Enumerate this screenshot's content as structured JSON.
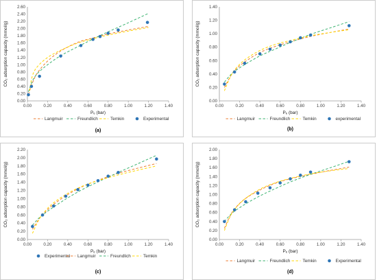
{
  "figure": {
    "captions": [
      "(a)",
      "(b)",
      "(c)",
      "(d)"
    ]
  },
  "colors": {
    "Langmuir": "#ED7D31",
    "Freundlich": "#3CB371",
    "Temkin": "#FFD700",
    "Experimental": "#2E75B6",
    "frame": "#BFBFBF",
    "axis": "#9A9A9A"
  },
  "chart_data": [
    {
      "type": "scatter",
      "caption": "(a)",
      "xlabel": "Pₑ (bar)",
      "ylabel": "CO₂ adsorption capacity (mmol/g)",
      "xlim": [
        0,
        1.4
      ],
      "ylim": [
        0,
        2.6
      ],
      "xticks": [
        "0.00",
        "0.20",
        "0.40",
        "0.60",
        "0.80",
        "1.00",
        "1.20",
        "1.40"
      ],
      "yticks": [
        "0.00",
        "0.20",
        "0.40",
        "0.60",
        "0.80",
        "1.00",
        "1.20",
        "1.40",
        "1.60",
        "1.80",
        "2.00",
        "2.20",
        "2.40",
        "2.60"
      ],
      "legend": [
        "Langmuir",
        "Freundlich",
        "Temkin",
        "Experimental"
      ],
      "legend_position": "bottom",
      "series": [
        {
          "name": "Langmuir",
          "style": "dashed",
          "x": [
            0.01,
            0.05,
            0.1,
            0.2,
            0.33,
            0.5,
            0.65,
            0.8,
            1.0,
            1.2
          ],
          "y": [
            0.18,
            0.5,
            0.78,
            1.1,
            1.38,
            1.62,
            1.74,
            1.85,
            1.96,
            2.06
          ]
        },
        {
          "name": "Freundlich",
          "style": "dashed",
          "x": [
            0.01,
            0.05,
            0.1,
            0.2,
            0.33,
            0.5,
            0.65,
            0.8,
            1.0,
            1.2
          ],
          "y": [
            0.25,
            0.55,
            0.76,
            1.0,
            1.25,
            1.5,
            1.71,
            1.91,
            2.16,
            2.42
          ]
        },
        {
          "name": "Temkin",
          "style": "dashed",
          "x": [
            0.02,
            0.05,
            0.1,
            0.2,
            0.33,
            0.5,
            0.65,
            0.8,
            1.0,
            1.2
          ],
          "y": [
            0.28,
            0.7,
            0.95,
            1.2,
            1.4,
            1.6,
            1.72,
            1.82,
            1.93,
            2.03
          ]
        },
        {
          "name": "Experimental",
          "style": "markers",
          "x": [
            0.01,
            0.04,
            0.12,
            0.33,
            0.53,
            0.65,
            0.72,
            0.8,
            0.9,
            1.19
          ],
          "y": [
            0.17,
            0.4,
            0.68,
            1.24,
            1.53,
            1.7,
            1.78,
            1.87,
            1.96,
            2.17
          ]
        }
      ]
    },
    {
      "type": "scatter",
      "caption": "(b)",
      "xlabel": "Pₑ (bar)",
      "ylabel": "CO₂ adsorption capacity (mmol/g)",
      "xlim": [
        0,
        1.4
      ],
      "ylim": [
        0,
        1.4
      ],
      "xticks": [
        "0.00",
        "0.20",
        "0.40",
        "0.60",
        "0.80",
        "1.00",
        "1.20",
        "1.40"
      ],
      "yticks": [
        "0.00",
        "0.20",
        "0.40",
        "0.60",
        "0.80",
        "1.00",
        "1.20",
        "1.40"
      ],
      "legend": [
        "Langmuir",
        "Freundlich",
        "Temkin",
        "experimental"
      ],
      "legend_position": "bottom",
      "series": [
        {
          "name": "Langmuir",
          "style": "dashed",
          "x": [
            0.05,
            0.1,
            0.15,
            0.25,
            0.4,
            0.55,
            0.7,
            0.9,
            1.1,
            1.28
          ],
          "y": [
            0.2,
            0.34,
            0.45,
            0.58,
            0.72,
            0.81,
            0.88,
            0.96,
            1.02,
            1.07
          ]
        },
        {
          "name": "Freundlich",
          "style": "dashed",
          "x": [
            0.05,
            0.1,
            0.15,
            0.25,
            0.4,
            0.55,
            0.7,
            0.9,
            1.1,
            1.28
          ],
          "y": [
            0.28,
            0.37,
            0.44,
            0.54,
            0.67,
            0.77,
            0.87,
            0.99,
            1.09,
            1.18
          ]
        },
        {
          "name": "Temkin",
          "style": "dashed",
          "x": [
            0.05,
            0.1,
            0.15,
            0.25,
            0.4,
            0.55,
            0.7,
            0.9,
            1.1,
            1.28
          ],
          "y": [
            0.15,
            0.33,
            0.46,
            0.61,
            0.75,
            0.84,
            0.9,
            0.97,
            1.02,
            1.06
          ]
        },
        {
          "name": "experimental",
          "style": "markers",
          "x": [
            0.05,
            0.15,
            0.25,
            0.4,
            0.5,
            0.6,
            0.7,
            0.8,
            0.9,
            1.28
          ],
          "y": [
            0.25,
            0.43,
            0.56,
            0.7,
            0.77,
            0.83,
            0.88,
            0.94,
            0.98,
            1.12
          ]
        }
      ]
    },
    {
      "type": "scatter",
      "caption": "(c)",
      "xlabel": "Pₑ (bar)",
      "ylabel": "CO₂ adsorption capacity (mmol/g)",
      "xlim": [
        0,
        1.4
      ],
      "ylim": [
        0,
        2.2
      ],
      "xticks": [
        "0.00",
        "0.20",
        "0.40",
        "0.60",
        "0.80",
        "1.00",
        "1.20",
        "1.40"
      ],
      "yticks": [
        "0.00",
        "0.20",
        "0.40",
        "0.60",
        "0.80",
        "1.00",
        "1.20",
        "1.40",
        "1.60",
        "1.80",
        "2.00",
        "2.20"
      ],
      "legend": [
        "Experimental",
        "Langmuir",
        "Freundlich",
        "Temkin"
      ],
      "legend_position": "bottom",
      "series": [
        {
          "name": "Langmuir",
          "style": "dashed",
          "x": [
            0.05,
            0.1,
            0.15,
            0.25,
            0.4,
            0.55,
            0.7,
            0.9,
            1.1,
            1.28
          ],
          "y": [
            0.25,
            0.45,
            0.6,
            0.84,
            1.1,
            1.3,
            1.45,
            1.62,
            1.75,
            1.86
          ]
        },
        {
          "name": "Freundlich",
          "style": "dashed",
          "x": [
            0.05,
            0.1,
            0.15,
            0.25,
            0.4,
            0.55,
            0.7,
            0.9,
            1.1,
            1.28
          ],
          "y": [
            0.35,
            0.49,
            0.6,
            0.78,
            1.02,
            1.23,
            1.41,
            1.64,
            1.86,
            2.06
          ]
        },
        {
          "name": "Temkin",
          "style": "dashed",
          "x": [
            0.05,
            0.1,
            0.15,
            0.25,
            0.4,
            0.55,
            0.7,
            0.9,
            1.1,
            1.28
          ],
          "y": [
            0.15,
            0.42,
            0.62,
            0.88,
            1.13,
            1.31,
            1.44,
            1.58,
            1.7,
            1.8
          ]
        },
        {
          "name": "Experimental",
          "style": "markers",
          "x": [
            0.05,
            0.15,
            0.26,
            0.38,
            0.5,
            0.6,
            0.7,
            0.8,
            0.9,
            1.28
          ],
          "y": [
            0.32,
            0.6,
            0.82,
            1.06,
            1.22,
            1.33,
            1.44,
            1.55,
            1.64,
            1.97
          ]
        }
      ]
    },
    {
      "type": "scatter",
      "caption": "(d)",
      "xlabel": "Pₑ (bar)",
      "ylabel": "CO₂ adsorption capacity (mmol/g)",
      "xlim": [
        0,
        1.4
      ],
      "ylim": [
        0,
        2.0
      ],
      "xticks": [
        "0.00",
        "0.20",
        "0.40",
        "0.60",
        "0.80",
        "1.00",
        "1.20",
        "1.40"
      ],
      "yticks": [
        "0.00",
        "0.20",
        "0.40",
        "0.60",
        "0.80",
        "1.00",
        "1.20",
        "1.40",
        "1.60",
        "1.80",
        "2.00"
      ],
      "legend": [
        "Langmuir",
        "Freundlich",
        "Temkin",
        "Experimental"
      ],
      "legend_position": "bottom",
      "series": [
        {
          "name": "Langmuir",
          "style": "dashed",
          "x": [
            0.05,
            0.1,
            0.15,
            0.25,
            0.4,
            0.55,
            0.7,
            0.9,
            1.1,
            1.28
          ],
          "y": [
            0.25,
            0.5,
            0.68,
            0.9,
            1.1,
            1.25,
            1.35,
            1.45,
            1.54,
            1.61
          ]
        },
        {
          "name": "Freundlich",
          "style": "dashed",
          "x": [
            0.05,
            0.1,
            0.15,
            0.25,
            0.4,
            0.55,
            0.7,
            0.9,
            1.1,
            1.28
          ],
          "y": [
            0.4,
            0.53,
            0.63,
            0.78,
            0.97,
            1.13,
            1.28,
            1.45,
            1.6,
            1.74
          ]
        },
        {
          "name": "Temkin",
          "style": "dashed",
          "x": [
            0.05,
            0.1,
            0.15,
            0.25,
            0.4,
            0.55,
            0.7,
            0.9,
            1.1,
            1.28
          ],
          "y": [
            0.2,
            0.48,
            0.67,
            0.9,
            1.12,
            1.26,
            1.36,
            1.46,
            1.53,
            1.58
          ]
        },
        {
          "name": "Experimental",
          "style": "markers",
          "x": [
            0.05,
            0.15,
            0.26,
            0.38,
            0.5,
            0.6,
            0.7,
            0.8,
            0.9,
            1.28
          ],
          "y": [
            0.4,
            0.66,
            0.84,
            1.03,
            1.15,
            1.26,
            1.35,
            1.43,
            1.5,
            1.73
          ]
        }
      ]
    }
  ]
}
